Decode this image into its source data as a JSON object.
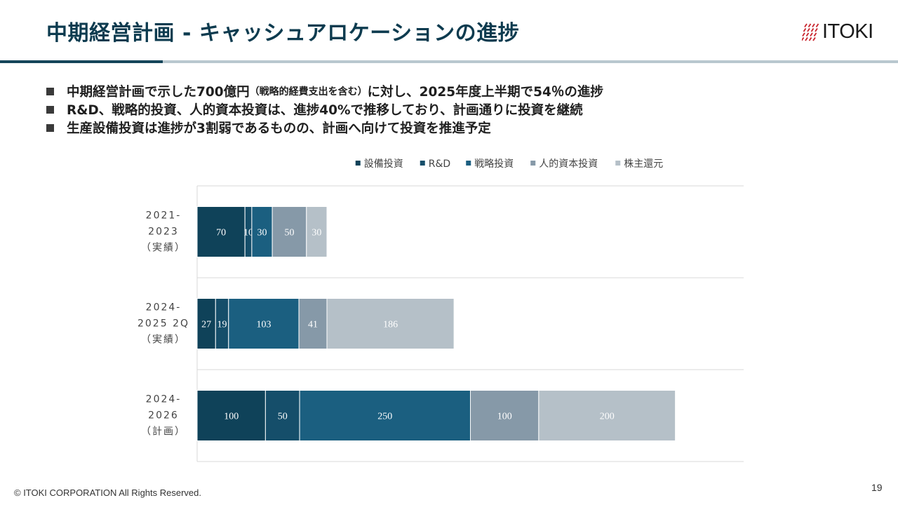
{
  "slide": {
    "title": "中期経営計画 - キャッシュアロケーションの進捗",
    "logo_text": "ITOKI",
    "bullets": [
      {
        "before": "中期経営計画で示した700億円",
        "small": "（戦略的経費支出を含む）",
        "after": "に対し、2025年度上半期で54％の進捗"
      },
      {
        "before": "R&D、戦略的投資、人的資本投資は、進捗40%で推移しており、計画通りに投資を継続",
        "small": "",
        "after": ""
      },
      {
        "before": "生産設備投資は進捗が3割弱であるものの、計画へ向けて投資を推進予定",
        "small": "",
        "after": ""
      }
    ],
    "footer": "© ITOKI CORPORATION All Rights Reserved.",
    "page_number": "19",
    "colors": {
      "title": "#0d3b4f",
      "rule_dark": "#15455a",
      "rule_light": "#b9c8cf",
      "logo_mark": "#c8232c"
    }
  },
  "chart_data": {
    "type": "bar",
    "orientation": "horizontal",
    "stacked": true,
    "categories": [
      [
        "2021-",
        "2023",
        "（実績）"
      ],
      [
        "2024-",
        "2025 2Q",
        "（実績）"
      ],
      [
        "2024-",
        "2026",
        "（計画）"
      ]
    ],
    "series": [
      {
        "name": "設備投資",
        "color": "#0f4259",
        "values": [
          70,
          27,
          100
        ]
      },
      {
        "name": "R&D",
        "color": "#154e6a",
        "values": [
          10,
          19,
          50
        ]
      },
      {
        "name": "戦略投資",
        "color": "#1b5f80",
        "values": [
          30,
          103,
          250
        ]
      },
      {
        "name": "人的資本投資",
        "color": "#8699a8",
        "values": [
          50,
          41,
          100
        ]
      },
      {
        "name": "株主還元",
        "color": "#b5c0c8",
        "values": [
          30,
          186,
          200
        ]
      }
    ],
    "xlim": [
      0,
      800
    ],
    "legend_position": "top",
    "grid": "horizontal separators"
  }
}
